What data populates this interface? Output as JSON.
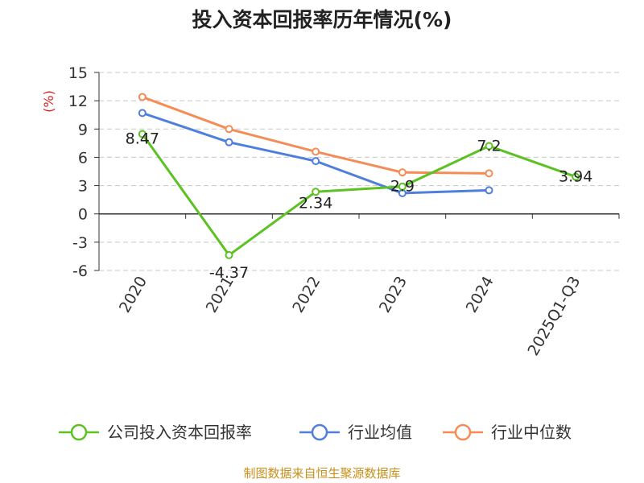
{
  "chart_data": {
    "type": "line",
    "title": "投入资本回报率历年情况(%)",
    "ylabel": "(%)",
    "categories": [
      "2020",
      "2021",
      "2022",
      "2023",
      "2024",
      "2025Q1-Q3"
    ],
    "ylim": [
      -6,
      15
    ],
    "yticks": [
      15,
      12,
      9,
      6,
      3,
      0,
      -3,
      -6
    ],
    "grid": true,
    "legend_position": "bottom",
    "series": [
      {
        "name": "公司投入资本回报率",
        "color": "#5cc122",
        "values": [
          8.47,
          -4.37,
          2.34,
          2.9,
          7.2,
          3.94
        ],
        "labels": [
          "8.47",
          "-4.37",
          "2.34",
          "2.9",
          "7.2",
          "3.94"
        ]
      },
      {
        "name": "行业均值",
        "color": "#4f7fdc",
        "values": [
          10.7,
          7.6,
          5.6,
          2.2,
          2.5,
          null
        ]
      },
      {
        "name": "行业中位数",
        "color": "#f58c56",
        "values": [
          12.4,
          9.0,
          6.6,
          4.4,
          4.3,
          null
        ]
      }
    ]
  },
  "source": "制图数据来自恒生聚源数据库"
}
